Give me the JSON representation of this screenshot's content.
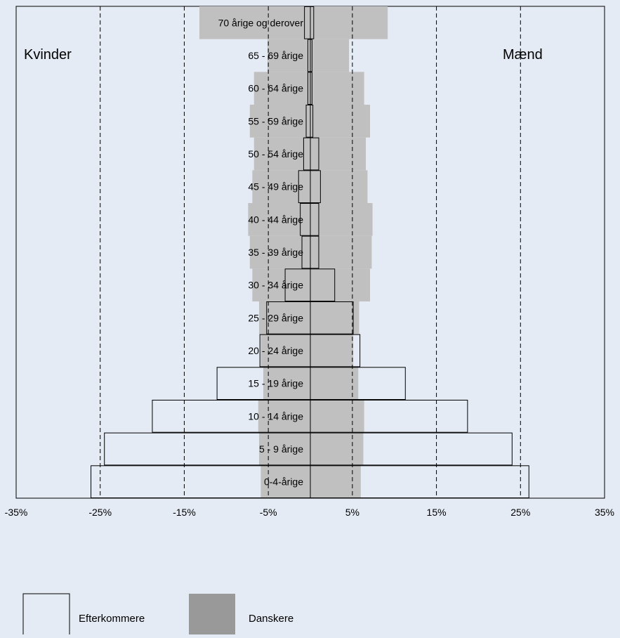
{
  "chart_data": {
    "type": "bar",
    "subtype": "population-pyramid",
    "title": "",
    "side_labels": {
      "left": "Kvinder",
      "right": "Mænd"
    },
    "categories": [
      "70 årige og derover",
      "65 - 69 årige",
      "60 - 64 årige",
      "55 - 59 årige",
      "50 - 54 årige",
      "45 - 49 årige",
      "40 - 44 årige",
      "35 - 39 årige",
      "30 - 34 årige",
      "25 - 29 årige",
      "20 - 24 årige",
      "15 - 19 årige",
      "10 - 14 årige",
      "5 - 9 årige",
      "0-4-årige"
    ],
    "series": [
      {
        "name": "Danskere",
        "color": "#c0c0c0",
        "women": [
          -13.2,
          -5.1,
          -6.7,
          -7.2,
          -6.7,
          -6.9,
          -7.4,
          -7.2,
          -6.9,
          -6.1,
          -5.9,
          -5.6,
          -6.2,
          -6.1,
          -5.9
        ],
        "men": [
          9.2,
          4.6,
          6.4,
          7.1,
          6.6,
          6.8,
          7.4,
          7.3,
          7.1,
          5.8,
          5.1,
          5.7,
          6.4,
          6.3,
          6.0
        ]
      },
      {
        "name": "Efterkommere",
        "color": "#e4ebf4",
        "women": [
          -0.7,
          -0.3,
          -0.3,
          -0.5,
          -0.8,
          -1.4,
          -1.2,
          -1.0,
          -3.0,
          -5.2,
          -6.0,
          -11.1,
          -18.8,
          -24.5,
          -26.1
        ],
        "men": [
          0.4,
          0.2,
          0.2,
          0.3,
          1.0,
          1.2,
          1.0,
          1.0,
          2.9,
          5.1,
          5.9,
          11.3,
          18.7,
          24.0,
          26.0
        ]
      }
    ],
    "x_ticks": [
      "-35%",
      "-25%",
      "-15%",
      "-5%",
      "5%",
      "15%",
      "25%",
      "35%"
    ],
    "x_tick_values": [
      -35,
      -25,
      -15,
      -5,
      5,
      15,
      25,
      35
    ],
    "xlim": [
      -35,
      35
    ],
    "grid": "vertical dashed",
    "legend_position": "bottom-left",
    "legend": [
      {
        "label": "Efterkommere",
        "swatch": "#e4ebf4"
      },
      {
        "label": "Danskere",
        "swatch": "#999999"
      }
    ],
    "colors": {
      "background": "#e4ebf4",
      "bar_danish": "#c0c0c0",
      "legend_danish": "#999999",
      "outline": "#000000"
    }
  }
}
